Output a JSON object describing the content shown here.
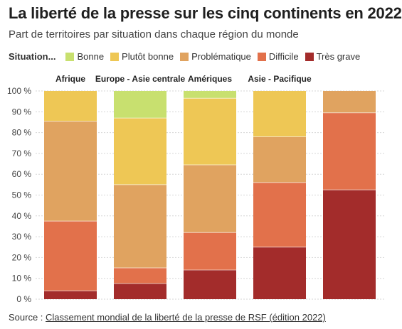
{
  "title": "La liberté de la presse sur les cinq continents en 2022",
  "subtitle": "Part de territoires par situation dans chaque région du monde",
  "legend_title": "Situation...",
  "source": {
    "prefix": "Source : ",
    "link_text": "Classement mondial de la liberté de la presse de RSF (édition 2022)"
  },
  "colors": {
    "Bonne": "#c8e06f",
    "Plutôt bonne": "#eec755",
    "Problématique": "#e0a360",
    "Difficile": "#e2714b",
    "Très grave": "#a32c2b"
  },
  "chart_data": {
    "type": "bar",
    "stacked": true,
    "categories": [
      "Afrique",
      "Europe - Asie centrale",
      "Amériques",
      "Asie - Pacifique",
      ""
    ],
    "y_tick_labels": [
      "0 %",
      "10 %",
      "20 %",
      "30 %",
      "40 %",
      "50 %",
      "60 %",
      "70 %",
      "80 %",
      "90 %",
      "100 %"
    ],
    "ylim": [
      0,
      100
    ],
    "grid": true,
    "legend_position": "top-left",
    "series": [
      {
        "name": "Très grave",
        "values": [
          4,
          7.5,
          14,
          25,
          52.5
        ]
      },
      {
        "name": "Difficile",
        "values": [
          33.5,
          7.5,
          18,
          31,
          37
        ]
      },
      {
        "name": "Problématique",
        "values": [
          48,
          40,
          32.5,
          22,
          10.5
        ]
      },
      {
        "name": "Plutôt bonne",
        "values": [
          14.5,
          32,
          32,
          22,
          0
        ]
      },
      {
        "name": "Bonne",
        "values": [
          0,
          13,
          3.5,
          0,
          0
        ]
      }
    ]
  }
}
